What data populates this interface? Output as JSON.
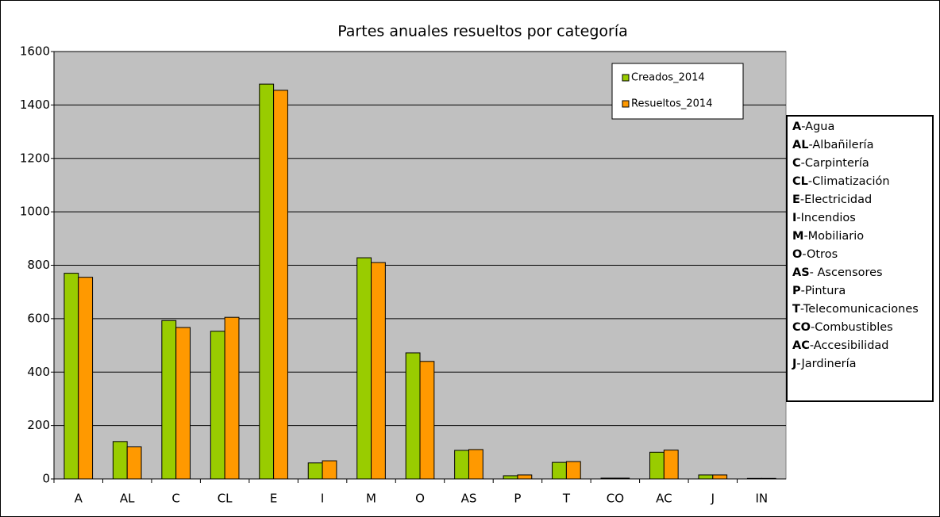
{
  "chart_data": {
    "type": "bar",
    "title": "Partes anuales resueltos por categoría",
    "categories": [
      "A",
      "AL",
      "C",
      "CL",
      "E",
      "I",
      "M",
      "O",
      "AS",
      "P",
      "T",
      "CO",
      "AC",
      "J",
      "IN"
    ],
    "series": [
      {
        "name": "Creados_2014",
        "color": "#99cc00",
        "values": [
          770,
          140,
          593,
          553,
          1478,
          60,
          828,
          472,
          107,
          12,
          62,
          3,
          100,
          15,
          2
        ]
      },
      {
        "name": "Resueltos_2014",
        "color": "#ff9900",
        "values": [
          755,
          120,
          567,
          605,
          1455,
          68,
          810,
          440,
          110,
          15,
          65,
          3,
          108,
          15,
          2
        ]
      }
    ],
    "ylim": [
      0,
      1600
    ],
    "yticks": [
      0,
      200,
      400,
      600,
      800,
      1000,
      1200,
      1400,
      1600
    ],
    "grid": true,
    "legend": "top-right",
    "category_key": [
      {
        "code": "A",
        "text": "-Agua"
      },
      {
        "code": "AL",
        "text": "-Albañilería"
      },
      {
        "code": "C",
        "text": "-Carpintería"
      },
      {
        "code": "CL",
        "text": "-Climatización"
      },
      {
        "code": "E",
        "text": "-Electricidad"
      },
      {
        "code": "I",
        "text": "-Incendios"
      },
      {
        "code": "M",
        "text": "-Mobiliario"
      },
      {
        "code": "O",
        "text": "-Otros"
      },
      {
        "code": "AS",
        "text": "- Ascensores"
      },
      {
        "code": "P",
        "text": "-Pintura"
      },
      {
        "code": "T",
        "text": "-Telecomunicaciones"
      },
      {
        "code": "CO",
        "text": "-Combustibles"
      },
      {
        "code": "AC",
        "text": "-Accesibilidad"
      },
      {
        "code": "J",
        "text": "-Jardinería"
      }
    ]
  }
}
